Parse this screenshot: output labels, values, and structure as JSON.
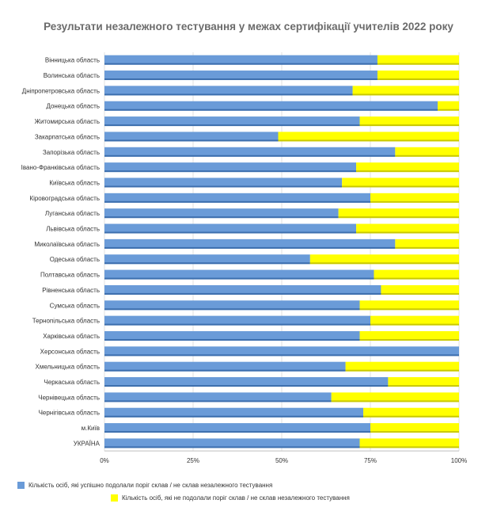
{
  "chart_data": {
    "type": "bar",
    "orientation": "horizontal",
    "stacked": "percent",
    "title": "Результати незалежного тестування у межах сертифікації учителів 2022 року",
    "categories": [
      "Вінницька область",
      "Волинська область",
      "Дніпропетровська область",
      "Донецька область",
      "Житомирська область",
      "Закарпатська область",
      "Запорізька область",
      "Івано-Франківська область",
      "Київська область",
      "Кіровоградська область",
      "Луганська область",
      "Львівська область",
      "Миколаївська область",
      "Одеська область",
      "Полтавська область",
      "Рівненська область",
      "Сумська область",
      "Тернопільська область",
      "Харківська область",
      "Херсонська область",
      "Хмельницька область",
      "Черкаська область",
      "Чернівецька область",
      "Чернігівська область",
      "м.Київ",
      "УКРАЇНА"
    ],
    "series": [
      {
        "name": "Кількість осіб, які успішно подолали поріг склав / не склав незалежного тестування",
        "color": "#6a9bd8",
        "values": [
          77,
          77,
          70,
          94,
          72,
          49,
          82,
          71,
          67,
          75,
          66,
          71,
          82,
          58,
          76,
          78,
          72,
          75,
          72,
          100,
          68,
          80,
          64,
          73,
          75,
          72
        ]
      },
      {
        "name": "Кількість осіб, які не подолали поріг склав / не склав незалежного тестування",
        "color": "#ffff00",
        "values": [
          23,
          23,
          30,
          6,
          28,
          51,
          18,
          29,
          33,
          25,
          34,
          29,
          18,
          42,
          24,
          22,
          28,
          25,
          28,
          0,
          32,
          20,
          36,
          27,
          25,
          28
        ]
      }
    ],
    "xaxis": {
      "ticks": [
        "0%",
        "25%",
        "50%",
        "75%",
        "100%"
      ],
      "range": [
        0,
        100
      ]
    },
    "grid": "vertical",
    "legend_position": "bottom-left"
  }
}
